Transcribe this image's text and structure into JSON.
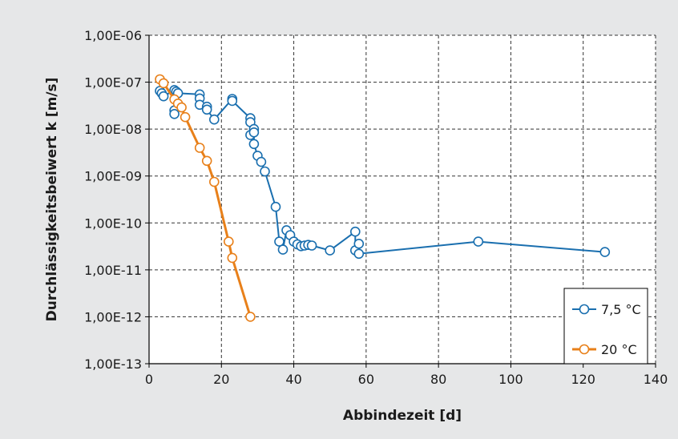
{
  "chart_data": {
    "type": "line",
    "title": "",
    "xlabel": "Abbindezeit [d]",
    "ylabel": "Durchlässigkeitsbeiwert k [m/s]",
    "xlim": [
      0,
      140
    ],
    "ylim": [
      1e-13,
      1e-06
    ],
    "yscale": "log",
    "grid": true,
    "legend_position": "bottom-right",
    "x_ticks": [
      "0",
      "20",
      "40",
      "60",
      "80",
      "100",
      "120",
      "140"
    ],
    "x_tick_values": [
      0,
      20,
      40,
      60,
      80,
      100,
      120,
      140
    ],
    "y_ticks": [
      "1,00E-06",
      "1,00E-07",
      "1,00E-08",
      "1,00E-09",
      "1,00E-10",
      "1,00E-11",
      "1,00E-12",
      "1,00E-13"
    ],
    "y_tick_values": [
      1e-06,
      1e-07,
      1e-08,
      1e-09,
      1e-10,
      1e-11,
      1e-12,
      1e-13
    ],
    "series": [
      {
        "name": "7,5 °C",
        "color": "#1a6faf",
        "points": [
          [
            3,
            6.5e-08
          ],
          [
            3.5,
            5.8e-08
          ],
          [
            4,
            5e-08
          ],
          [
            7,
            6.8e-08
          ],
          [
            7,
            2.5e-08
          ],
          [
            7,
            2.1e-08
          ],
          [
            7.5,
            6.3e-08
          ],
          [
            8,
            5.8e-08
          ],
          [
            14,
            5.5e-08
          ],
          [
            14,
            4.5e-08
          ],
          [
            14,
            3.3e-08
          ],
          [
            16,
            3e-08
          ],
          [
            16,
            2.6e-08
          ],
          [
            18,
            1.6e-08
          ],
          [
            23,
            4.4e-08
          ],
          [
            23,
            4e-08
          ],
          [
            28,
            1.7e-08
          ],
          [
            28,
            1.4e-08
          ],
          [
            28,
            7.5e-09
          ],
          [
            29,
            1e-08
          ],
          [
            29,
            8.5e-09
          ],
          [
            29,
            4.8e-09
          ],
          [
            30,
            2.7e-09
          ],
          [
            31,
            2e-09
          ],
          [
            32,
            1.25e-09
          ],
          [
            35,
            2.2e-10
          ],
          [
            36,
            4e-11
          ],
          [
            37,
            2.7e-11
          ],
          [
            38,
            7e-11
          ],
          [
            39,
            5.5e-11
          ],
          [
            40,
            4e-11
          ],
          [
            41,
            3.5e-11
          ],
          [
            42,
            3.2e-11
          ],
          [
            43,
            3.3e-11
          ],
          [
            44,
            3.4e-11
          ],
          [
            45,
            3.3e-11
          ],
          [
            50,
            2.6e-11
          ],
          [
            57,
            6.5e-11
          ],
          [
            57,
            2.6e-11
          ],
          [
            58,
            3.6e-11
          ],
          [
            58,
            2.2e-11
          ],
          [
            91,
            4e-11
          ],
          [
            126,
            2.4e-11
          ]
        ]
      },
      {
        "name": "20 °C",
        "color": "#e8801a",
        "points": [
          [
            3,
            1.15e-07
          ],
          [
            4,
            9.5e-08
          ],
          [
            7,
            4.3e-08
          ],
          [
            8,
            3.5e-08
          ],
          [
            9,
            2.9e-08
          ],
          [
            10,
            1.8e-08
          ],
          [
            14,
            4e-09
          ],
          [
            16,
            2.1e-09
          ],
          [
            18,
            7.5e-10
          ],
          [
            22,
            4e-11
          ],
          [
            23,
            1.8e-11
          ],
          [
            28,
            1e-12
          ]
        ]
      }
    ]
  }
}
